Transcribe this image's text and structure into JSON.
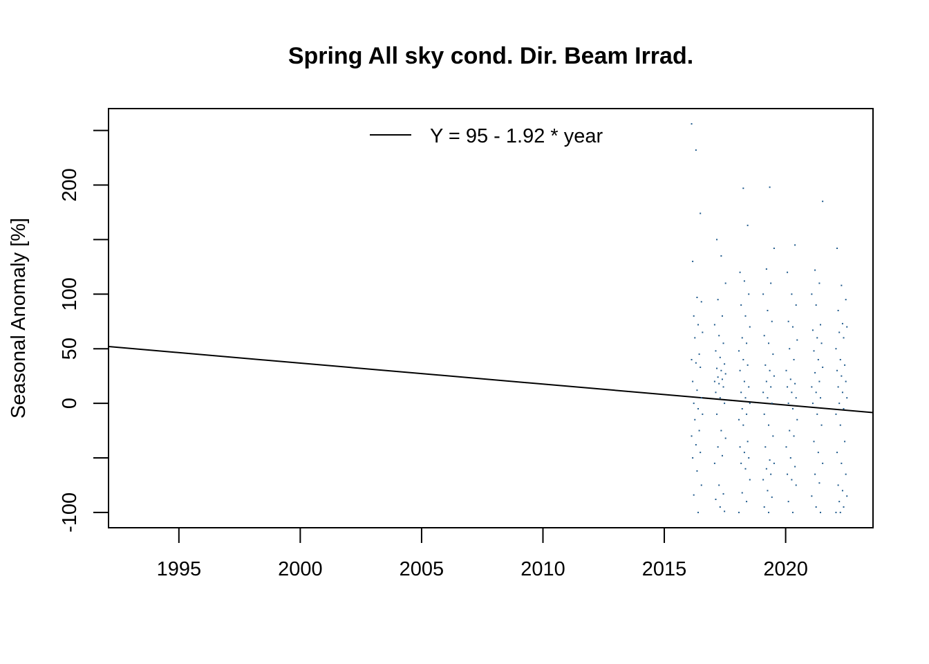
{
  "chart_data": {
    "type": "scatter",
    "title": "Spring All sky cond. Dir. Beam Irrad.",
    "xlabel": "",
    "ylabel": "Seasonal Anomaly [%]",
    "xlim": [
      1992.1,
      2023.6
    ],
    "ylim": [
      -114,
      270
    ],
    "x_ticks": [
      1995,
      2000,
      2005,
      2010,
      2015,
      2020
    ],
    "x_tick_labels": [
      "1995",
      "2000",
      "2005",
      "2010",
      "2015",
      "2020"
    ],
    "y_ticks": [
      -100,
      -50,
      0,
      50,
      100,
      150,
      200,
      250
    ],
    "y_tick_labels": [
      "-100",
      "",
      "0",
      "50",
      "100",
      "",
      "200",
      ""
    ],
    "grid": false,
    "legend": {
      "position": "top-center",
      "entries": [
        "Y = 95 - 1.92 * year"
      ]
    },
    "trend_line": {
      "label": "Y = 95 - 1.92 * year",
      "points": [
        [
          1992.1,
          52
        ],
        [
          2023.6,
          -8.5
        ]
      ],
      "color": "#000000"
    },
    "point_color": "#1f5a8c",
    "clusters": [
      {
        "center": 2016.35,
        "values": [
          256,
          232,
          174,
          130,
          97,
          93,
          80,
          72,
          65,
          60,
          45,
          40,
          37,
          33,
          20,
          12,
          5,
          0,
          -5,
          -10,
          -15,
          -25,
          -30,
          -38,
          -45,
          -50,
          -62,
          -75,
          -84,
          -100
        ]
      },
      {
        "center": 2017.3,
        "values": [
          150,
          135,
          110,
          95,
          80,
          72,
          62,
          55,
          48,
          42,
          36,
          32,
          30,
          27,
          24,
          22,
          20,
          18,
          15,
          10,
          5,
          0,
          -10,
          -25,
          -32,
          -40,
          -48,
          -55,
          -75,
          -83,
          -88,
          -95,
          -99
        ]
      },
      {
        "center": 2018.3,
        "values": [
          197,
          163,
          120,
          112,
          100,
          90,
          80,
          70,
          60,
          55,
          48,
          40,
          35,
          30,
          20,
          15,
          10,
          5,
          0,
          -5,
          -10,
          -15,
          -20,
          -35,
          -40,
          -45,
          -50,
          -55,
          -60,
          -70,
          -82,
          -90,
          -100
        ]
      },
      {
        "center": 2019.3,
        "values": [
          198,
          142,
          123,
          110,
          100,
          85,
          75,
          62,
          55,
          45,
          35,
          30,
          25,
          20,
          15,
          10,
          5,
          0,
          -10,
          -20,
          -30,
          -40,
          -52,
          -55,
          -60,
          -65,
          -70,
          -80,
          -86,
          -95,
          -100
        ]
      },
      {
        "center": 2020.25,
        "values": [
          145,
          120,
          100,
          90,
          75,
          70,
          58,
          50,
          40,
          30,
          22,
          18,
          15,
          10,
          5,
          0,
          -5,
          -15,
          -25,
          -30,
          -40,
          -50,
          -58,
          -65,
          -70,
          -75,
          -90,
          -100
        ]
      },
      {
        "center": 2021.3,
        "values": [
          185,
          122,
          110,
          100,
          90,
          72,
          67,
          60,
          55,
          48,
          40,
          33,
          28,
          20,
          15,
          10,
          5,
          0,
          -10,
          -20,
          -35,
          -45,
          -55,
          -65,
          -73,
          -85,
          -95,
          -100
        ]
      },
      {
        "center": 2022.3,
        "values": [
          142,
          108,
          95,
          85,
          73,
          70,
          65,
          60,
          50,
          40,
          35,
          30,
          25,
          20,
          15,
          10,
          5,
          0,
          -5,
          -10,
          -20,
          -35,
          -45,
          -55,
          -65,
          -75,
          -80,
          -85,
          -90,
          -95,
          -100,
          -100
        ]
      }
    ]
  }
}
